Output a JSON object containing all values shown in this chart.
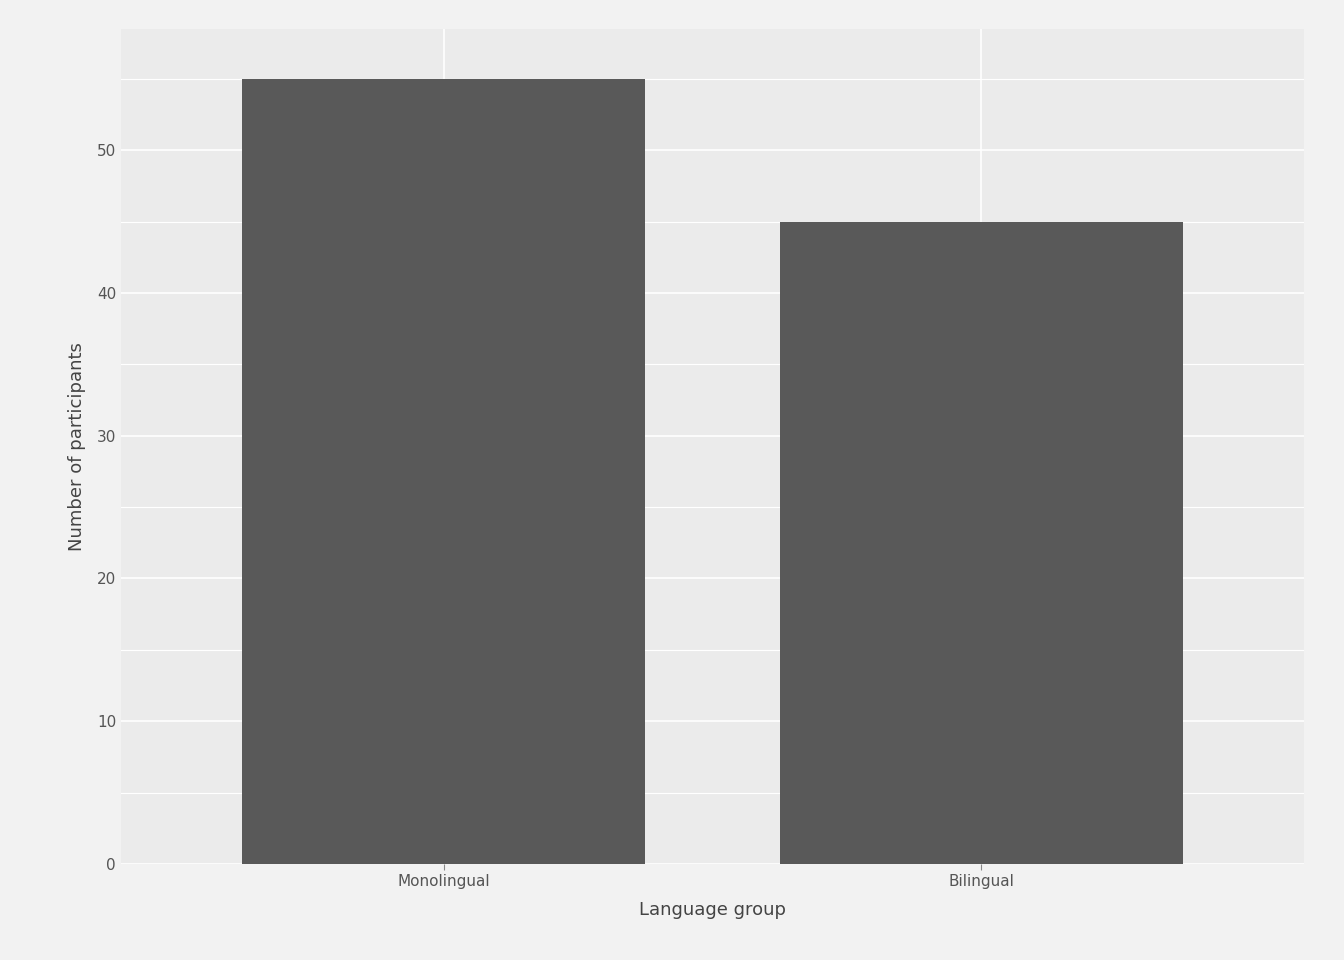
{
  "categories": [
    "Monolingual",
    "Bilingual"
  ],
  "values": [
    55,
    45
  ],
  "bar_color": "#595959",
  "bar_width": 0.75,
  "xlabel": "Language group",
  "ylabel": "Number of participants",
  "ylim": [
    0,
    58.5
  ],
  "yticks": [
    0,
    10,
    20,
    30,
    40,
    50
  ],
  "plot_bg_color": "#ebebeb",
  "outer_bg_color": "#f2f2f2",
  "panel_border_color": "#ffffff",
  "grid_color": "#ffffff",
  "xlabel_fontsize": 13,
  "ylabel_fontsize": 13,
  "tick_fontsize": 11,
  "tick_color": "#555555",
  "label_color": "#444444",
  "x_positions": [
    1,
    2
  ],
  "xlim": [
    0.4,
    2.6
  ]
}
